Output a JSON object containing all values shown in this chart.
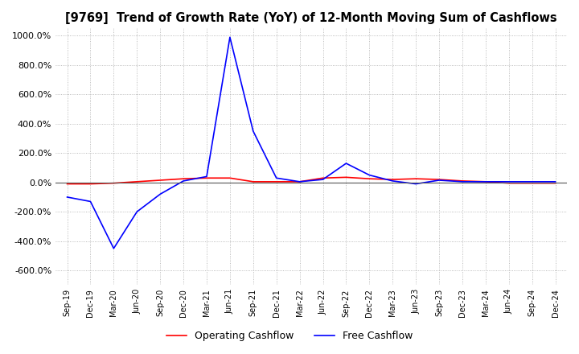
{
  "title": "[9769]  Trend of Growth Rate (YoY) of 12-Month Moving Sum of Cashflows",
  "title_fontsize": 10.5,
  "ylim": [
    -700,
    1050
  ],
  "yticks": [
    -600,
    -400,
    -200,
    0,
    200,
    400,
    600,
    800,
    1000
  ],
  "x_labels": [
    "Sep-19",
    "Dec-19",
    "Mar-20",
    "Jun-20",
    "Sep-20",
    "Dec-20",
    "Mar-21",
    "Jun-21",
    "Sep-21",
    "Dec-21",
    "Mar-22",
    "Jun-22",
    "Sep-22",
    "Dec-22",
    "Mar-23",
    "Jun-23",
    "Sep-23",
    "Dec-23",
    "Mar-24",
    "Jun-24",
    "Sep-24",
    "Dec-24"
  ],
  "operating_cashflow": [
    -10,
    -10,
    -5,
    5,
    15,
    25,
    30,
    30,
    5,
    5,
    5,
    30,
    35,
    25,
    20,
    25,
    20,
    10,
    5,
    -5,
    -5,
    -5
  ],
  "free_cashflow": [
    -100,
    -130,
    -450,
    -200,
    -80,
    10,
    40,
    990,
    350,
    30,
    5,
    20,
    130,
    50,
    10,
    -10,
    15,
    5,
    5,
    5,
    5,
    5
  ],
  "op_color": "#ff0000",
  "free_color": "#0000ff",
  "grid_color": "#aaaaaa",
  "bg_color": "#ffffff",
  "plot_bg_color": "#ffffff",
  "line_width": 1.2,
  "legend_ncol": 2
}
